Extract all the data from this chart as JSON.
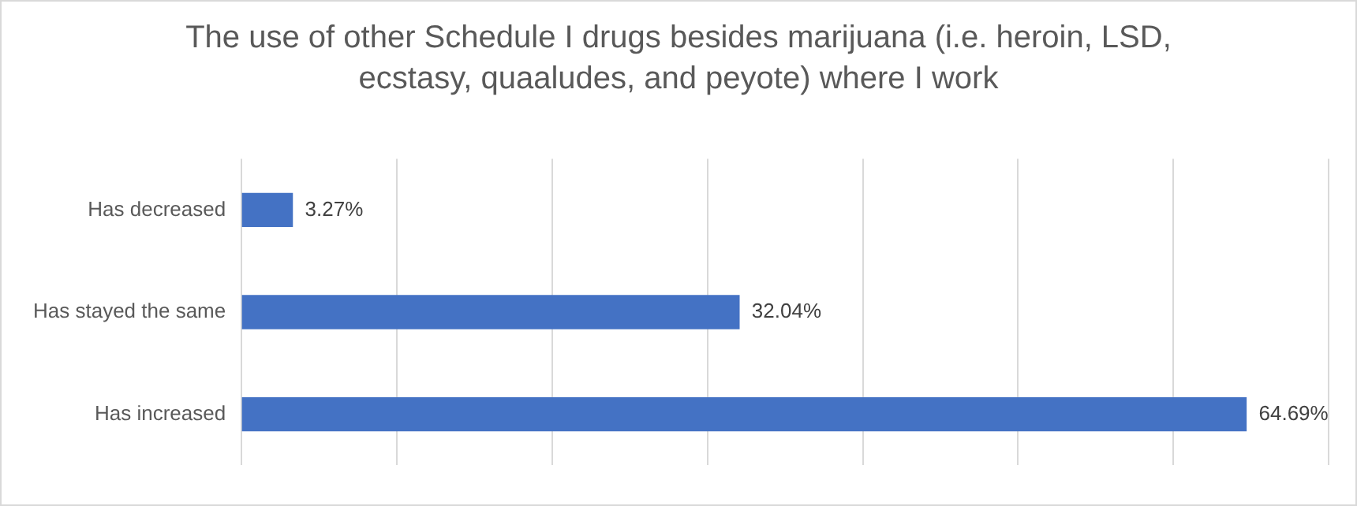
{
  "chart_data": {
    "type": "bar",
    "orientation": "horizontal",
    "title": "The use of other Schedule I drugs besides marijuana (i.e. heroin, LSD, ecstasy, quaaludes, and peyote) where I work",
    "categories": [
      "Has decreased",
      "Has stayed the same",
      "Has increased"
    ],
    "values": [
      3.27,
      32.04,
      64.69
    ],
    "value_labels": [
      "3.27%",
      "32.04%",
      "64.69%"
    ],
    "color": "#4472c4",
    "xlim": [
      0,
      70
    ],
    "xticks": [
      {
        "value": 0,
        "label": null
      },
      {
        "value": 10,
        "label": null
      },
      {
        "value": 20,
        "label": null
      },
      {
        "value": 30,
        "label": null
      },
      {
        "value": 40,
        "label": null
      },
      {
        "value": 50,
        "label": null
      },
      {
        "value": 60,
        "label": null
      },
      {
        "value": 70,
        "label": null
      }
    ],
    "grid": "x",
    "tick_labels": "y",
    "legend": false
  }
}
